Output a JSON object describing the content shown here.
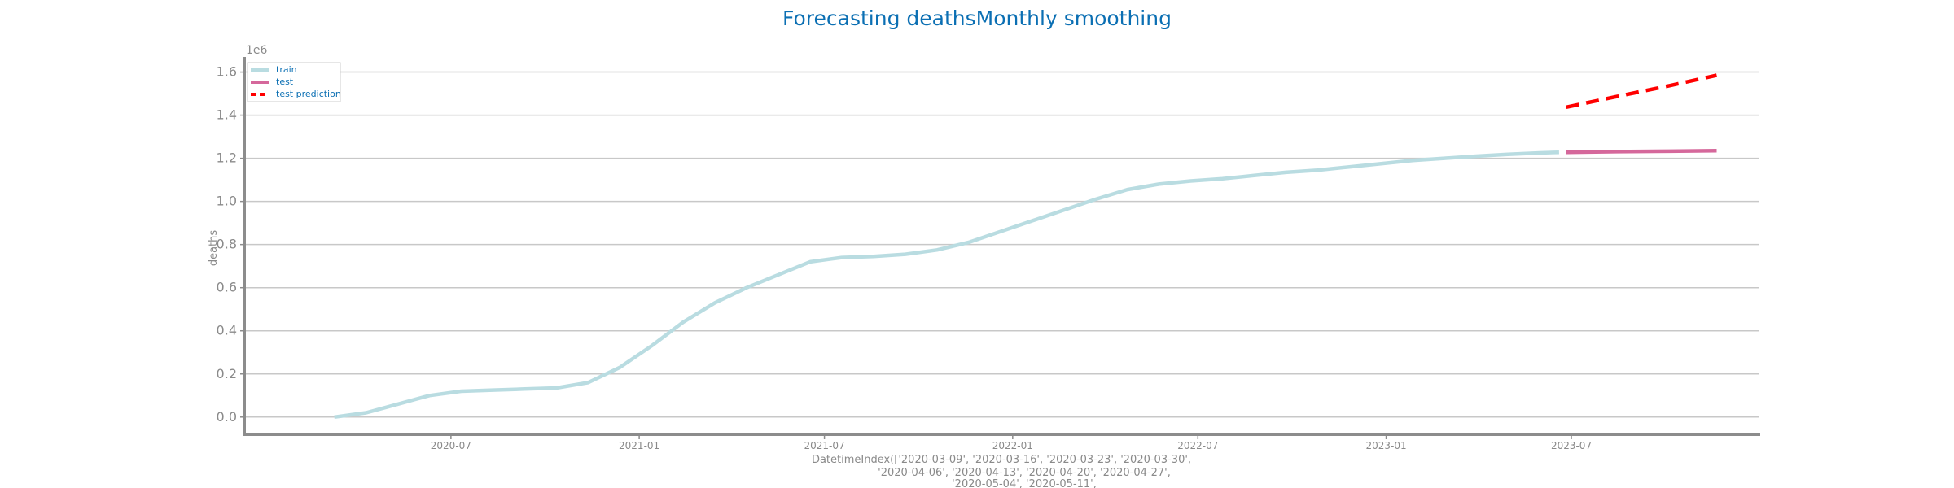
{
  "chart_data": {
    "type": "line",
    "title": "Forecasting deathsMonthly smoothing",
    "ylabel": "deaths",
    "y_scale_label": "1e6",
    "xlabel_lines": [
      "DatetimeIndex(['2020-03-09', '2020-03-16', '2020-03-23', '2020-03-30',",
      "'2020-04-06', '2020-04-13', '2020-04-20', '2020-04-27',",
      "'2020-05-04', '2020-05-11',"
    ],
    "ylim": [
      -0.08,
      1.67
    ],
    "xlim": [
      "2019-12-12",
      "2023-12-31"
    ],
    "y_ticks": [
      0.0,
      0.2,
      0.4,
      0.6,
      0.8,
      1.0,
      1.2,
      1.4,
      1.6
    ],
    "y_tick_labels": [
      "0.0",
      "0.2",
      "0.4",
      "0.6",
      "0.8",
      "1.0",
      "1.2",
      "1.4",
      "1.6"
    ],
    "x_ticks": [
      "2020-07-01",
      "2021-01-01",
      "2021-07-01",
      "2022-01-01",
      "2022-07-01",
      "2023-01-01",
      "2023-07-01"
    ],
    "x_tick_labels": [
      "2020-07",
      "2021-01",
      "2021-07",
      "2022-01",
      "2022-07",
      "2023-01",
      "2023-07"
    ],
    "grid": "horizontal",
    "legend_position": "top-left",
    "series": [
      {
        "name": "train",
        "color": "#b9dce1",
        "style": "solid",
        "x": [
          "2020-03-09",
          "2020-04-09",
          "2020-05-10",
          "2020-06-10",
          "2020-07-11",
          "2020-08-11",
          "2020-09-11",
          "2020-10-12",
          "2020-11-12",
          "2020-12-13",
          "2021-01-13",
          "2021-02-13",
          "2021-03-16",
          "2021-04-16",
          "2021-05-17",
          "2021-06-17",
          "2021-07-18",
          "2021-08-18",
          "2021-09-18",
          "2021-10-19",
          "2021-11-19",
          "2021-12-20",
          "2022-01-20",
          "2022-02-20",
          "2022-03-23",
          "2022-04-23",
          "2022-05-24",
          "2022-06-24",
          "2022-07-25",
          "2022-08-25",
          "2022-09-25",
          "2022-10-26",
          "2022-11-26",
          "2022-12-27",
          "2023-01-27",
          "2023-02-27",
          "2023-03-30",
          "2023-04-30",
          "2023-05-31",
          "2023-06-19"
        ],
        "values": [
          0.0,
          0.02,
          0.06,
          0.1,
          0.12,
          0.125,
          0.13,
          0.135,
          0.16,
          0.23,
          0.33,
          0.44,
          0.53,
          0.6,
          0.66,
          0.72,
          0.74,
          0.745,
          0.755,
          0.775,
          0.81,
          0.86,
          0.91,
          0.96,
          1.01,
          1.055,
          1.08,
          1.095,
          1.105,
          1.12,
          1.135,
          1.145,
          1.16,
          1.175,
          1.19,
          1.2,
          1.21,
          1.218,
          1.225,
          1.228
        ]
      },
      {
        "name": "test",
        "color": "#d5689b",
        "style": "solid",
        "x": [
          "2023-06-26",
          "2023-08-15",
          "2023-10-05",
          "2023-11-20"
        ],
        "values": [
          1.228,
          1.231,
          1.233,
          1.235
        ]
      },
      {
        "name": "test prediction",
        "color": "#ff0000",
        "style": "dashed",
        "x": [
          "2023-06-26",
          "2023-08-15",
          "2023-10-05",
          "2023-11-20"
        ],
        "values": [
          1.437,
          1.487,
          1.537,
          1.585
        ]
      }
    ]
  }
}
